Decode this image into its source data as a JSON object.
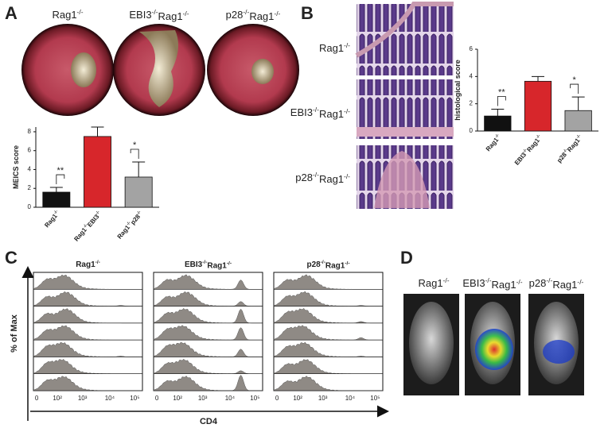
{
  "panel_labels": [
    "A",
    "B",
    "C",
    "D"
  ],
  "endoscopy_labels": [
    "Rag1-/-",
    "EBI3-/-Rag1-/-",
    "p28-/-Rag1-/-"
  ],
  "histology_labels": [
    "Rag1-/-",
    "EBI3-/-Rag1-/-",
    "p28-/-Rag1-/-"
  ],
  "flow": {
    "titles": [
      "Rag1-/-",
      "EBI3-/-Rag1-/-",
      "p28-/-Rag1-/-"
    ],
    "xtick_labels": [
      "0",
      "10²",
      "10³",
      "10⁴",
      "10⁵"
    ],
    "ylabel": "% of Max",
    "xlabel": "CD4"
  },
  "imaging_labels": [
    "Rag1-/-",
    "EBI3-/-Rag1-/-",
    "p28-/-Rag1-/-"
  ],
  "chart_data": [
    {
      "type": "bar",
      "ylabel": "MEICS score",
      "categories": [
        "Rag1-/-",
        "Rag1-/-EBI3-/-",
        "Rag1-/-p28-/-"
      ],
      "values": [
        1.6,
        7.5,
        3.2
      ],
      "errors": [
        0.5,
        1.0,
        1.6
      ],
      "colors": [
        "#111111",
        "#d7262b",
        "#a3a3a3"
      ],
      "ylim": [
        0,
        8.5
      ],
      "yticks": [
        0,
        2,
        4,
        6,
        8
      ],
      "annotations": [
        "**",
        "*"
      ]
    },
    {
      "type": "bar",
      "ylabel": "histological score",
      "categories": [
        "Rag1-/-",
        "EBI3-/-Rag1-/-",
        "p28-/-Rag1-/-"
      ],
      "values": [
        1.1,
        3.65,
        1.5
      ],
      "errors": [
        0.5,
        0.35,
        1.0
      ],
      "colors": [
        "#111111",
        "#d7262b",
        "#a3a3a3"
      ],
      "ylim": [
        0,
        6
      ],
      "yticks": [
        0,
        2,
        4,
        6
      ],
      "annotations": [
        "**",
        "*"
      ]
    }
  ]
}
